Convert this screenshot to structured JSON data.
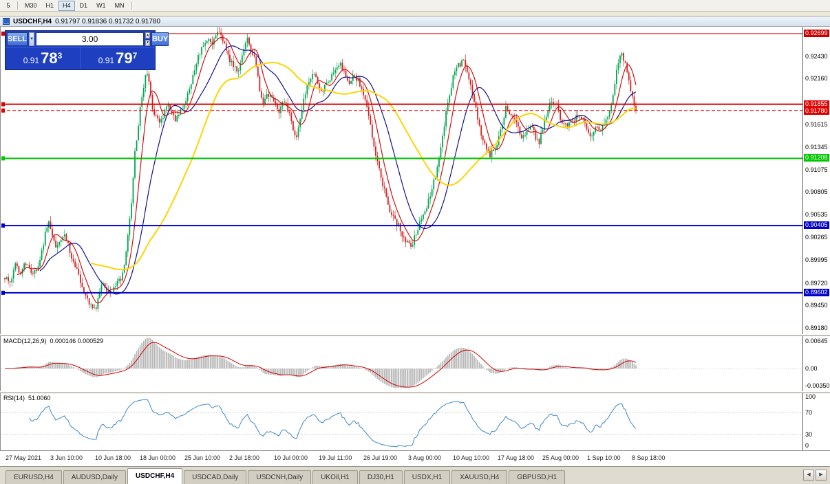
{
  "toolbar": {
    "timeframes": [
      "5",
      "M30",
      "H1",
      "H4",
      "D1",
      "W1",
      "MN"
    ],
    "active": "H4"
  },
  "titlebar": {
    "symbol": "USDCHF,H4",
    "ohlc": "0.91797 0.91836 0.91732 0.91780"
  },
  "order_panel": {
    "sell_label": "SELL",
    "buy_label": "BUY",
    "volume": "3.00",
    "sell_price": {
      "prefix": "0.91",
      "big": "78",
      "sup": "3"
    },
    "buy_price": {
      "prefix": "0.91",
      "big": "79",
      "sup": "7"
    }
  },
  "price_axis": {
    "ticks": [
      0.9243,
      0.9216,
      0.91615,
      0.91345,
      0.91075,
      0.90805,
      0.90535,
      0.90265,
      0.89995,
      0.8972,
      0.8945,
      0.8918
    ]
  },
  "indicators": {
    "macd": {
      "label": "MACD(12,26,9)",
      "values": "0.000146 0.000529",
      "axis": [
        {
          "v": 0.00645,
          "label": "0.00645"
        },
        {
          "v": 0,
          "label": "0.00"
        },
        {
          "v": -0.0035,
          "label": "-0.00350"
        }
      ]
    },
    "rsi": {
      "label": "RSI(14)",
      "value": "51.0060",
      "axis": [
        {
          "v": 100,
          "label": "100"
        },
        {
          "v": 70,
          "label": "70"
        },
        {
          "v": 30,
          "label": "30"
        },
        {
          "v": 0,
          "label": "0"
        }
      ]
    }
  },
  "time_axis": {
    "labels": [
      "27 May 2021",
      "3 Jun 10:00",
      "10 Jun 18:00",
      "18 Jun 00:00",
      "25 Jun 10:00",
      "2 Jul 18:00",
      "10 Jul 00:00",
      "19 Jul 11:00",
      "26 Jul 19:00",
      "3 Aug 00:00",
      "10 Aug 10:00",
      "17 Aug 18:00",
      "25 Aug 00:00",
      "1 Sep 10:00",
      "8 Sep 18:00"
    ]
  },
  "tabbar": {
    "tabs": [
      "EURUSD,H4",
      "AUDUSD,Daily",
      "USDCHF,H4",
      "USDCAD,Daily",
      "USDCNH,Daily",
      "UKOil,H1",
      "DJ30,H1",
      "USDX,H1",
      "XAUUSD,H4",
      "GBPUSD,H1"
    ],
    "active": "USDCHF,H4",
    "scroll_left": "◀",
    "scroll_right": "▶"
  },
  "chart_data": {
    "type": "candlestick",
    "symbol": "USDCHF",
    "timeframe": "H4",
    "price_range": {
      "max": 0.9278,
      "min": 0.891
    },
    "candle_count": 360,
    "seed": 12,
    "noise": 0.0008,
    "wick": 0.0007,
    "current_price": 0.9178,
    "up_color": "#00A550",
    "down_color": "#D42020",
    "horizontal_lines": [
      {
        "price": 0.92699,
        "color": "#CC0000",
        "width": 1
      },
      {
        "price": 0.91855,
        "color": "#E00000",
        "width": 2
      },
      {
        "price": 0.91208,
        "color": "#00C800",
        "width": 2
      },
      {
        "price": 0.90405,
        "color": "#0000C8",
        "width": 2
      },
      {
        "price": 0.89602,
        "color": "#0000C8",
        "width": 2
      }
    ],
    "moving_averages": [
      {
        "period": 8,
        "color": "#D01010"
      },
      {
        "period": 21,
        "color": "#101090"
      },
      {
        "period": 50,
        "color": "#FFD400"
      }
    ],
    "macd": {
      "fast": 12,
      "slow": 26,
      "signal": 9,
      "range": {
        "max": 0.0066,
        "min": -0.0046
      }
    },
    "rsi": {
      "period": 14,
      "levels": [
        70,
        30
      ]
    },
    "waypoints": [
      [
        0.0,
        0.8978
      ],
      [
        0.008,
        0.897
      ],
      [
        0.016,
        0.8992
      ],
      [
        0.024,
        0.8985
      ],
      [
        0.032,
        0.8996
      ],
      [
        0.04,
        0.8988
      ],
      [
        0.049,
        0.8984
      ],
      [
        0.058,
        0.901
      ],
      [
        0.066,
        0.9036
      ],
      [
        0.071,
        0.9044
      ],
      [
        0.076,
        0.9028
      ],
      [
        0.082,
        0.9012
      ],
      [
        0.087,
        0.9018
      ],
      [
        0.093,
        0.9032
      ],
      [
        0.098,
        0.9024
      ],
      [
        0.104,
        0.9006
      ],
      [
        0.11,
        0.8996
      ],
      [
        0.115,
        0.8988
      ],
      [
        0.122,
        0.8968
      ],
      [
        0.131,
        0.8952
      ],
      [
        0.138,
        0.8946
      ],
      [
        0.144,
        0.8942
      ],
      [
        0.15,
        0.896
      ],
      [
        0.156,
        0.8972
      ],
      [
        0.163,
        0.896
      ],
      [
        0.171,
        0.8964
      ],
      [
        0.178,
        0.8972
      ],
      [
        0.185,
        0.8976
      ],
      [
        0.193,
        0.901
      ],
      [
        0.2,
        0.9065
      ],
      [
        0.206,
        0.9125
      ],
      [
        0.212,
        0.9165
      ],
      [
        0.218,
        0.92
      ],
      [
        0.224,
        0.9226
      ],
      [
        0.229,
        0.9208
      ],
      [
        0.234,
        0.918
      ],
      [
        0.24,
        0.9168
      ],
      [
        0.246,
        0.916
      ],
      [
        0.252,
        0.9172
      ],
      [
        0.258,
        0.9186
      ],
      [
        0.264,
        0.918
      ],
      [
        0.27,
        0.9166
      ],
      [
        0.276,
        0.9172
      ],
      [
        0.283,
        0.9184
      ],
      [
        0.29,
        0.9198
      ],
      [
        0.298,
        0.922
      ],
      [
        0.306,
        0.924
      ],
      [
        0.314,
        0.9254
      ],
      [
        0.322,
        0.9264
      ],
      [
        0.328,
        0.9256
      ],
      [
        0.334,
        0.9268
      ],
      [
        0.34,
        0.9274
      ],
      [
        0.347,
        0.926
      ],
      [
        0.354,
        0.9244
      ],
      [
        0.362,
        0.923
      ],
      [
        0.37,
        0.9228
      ],
      [
        0.377,
        0.9248
      ],
      [
        0.384,
        0.9264
      ],
      [
        0.39,
        0.9252
      ],
      [
        0.397,
        0.9236
      ],
      [
        0.403,
        0.9206
      ],
      [
        0.409,
        0.9184
      ],
      [
        0.415,
        0.9194
      ],
      [
        0.421,
        0.9198
      ],
      [
        0.427,
        0.9188
      ],
      [
        0.433,
        0.9176
      ],
      [
        0.44,
        0.9188
      ],
      [
        0.447,
        0.9184
      ],
      [
        0.454,
        0.9166
      ],
      [
        0.461,
        0.9144
      ],
      [
        0.468,
        0.9166
      ],
      [
        0.474,
        0.919
      ],
      [
        0.481,
        0.9212
      ],
      [
        0.488,
        0.9226
      ],
      [
        0.495,
        0.921
      ],
      [
        0.502,
        0.92
      ],
      [
        0.509,
        0.9212
      ],
      [
        0.517,
        0.9218
      ],
      [
        0.524,
        0.923
      ],
      [
        0.53,
        0.9236
      ],
      [
        0.538,
        0.9222
      ],
      [
        0.545,
        0.9212
      ],
      [
        0.553,
        0.9218
      ],
      [
        0.56,
        0.9214
      ],
      [
        0.567,
        0.9198
      ],
      [
        0.573,
        0.9182
      ],
      [
        0.581,
        0.9152
      ],
      [
        0.589,
        0.9122
      ],
      [
        0.596,
        0.9098
      ],
      [
        0.603,
        0.9078
      ],
      [
        0.61,
        0.906
      ],
      [
        0.617,
        0.905
      ],
      [
        0.624,
        0.904
      ],
      [
        0.63,
        0.9028
      ],
      [
        0.637,
        0.902
      ],
      [
        0.644,
        0.9016
      ],
      [
        0.651,
        0.903
      ],
      [
        0.658,
        0.9044
      ],
      [
        0.665,
        0.9056
      ],
      [
        0.672,
        0.907
      ],
      [
        0.679,
        0.9092
      ],
      [
        0.687,
        0.9114
      ],
      [
        0.695,
        0.9152
      ],
      [
        0.703,
        0.9194
      ],
      [
        0.71,
        0.9216
      ],
      [
        0.717,
        0.923
      ],
      [
        0.723,
        0.9234
      ],
      [
        0.728,
        0.9238
      ],
      [
        0.735,
        0.9218
      ],
      [
        0.741,
        0.9198
      ],
      [
        0.747,
        0.9176
      ],
      [
        0.753,
        0.9156
      ],
      [
        0.76,
        0.9138
      ],
      [
        0.767,
        0.9124
      ],
      [
        0.774,
        0.913
      ],
      [
        0.781,
        0.9138
      ],
      [
        0.788,
        0.9162
      ],
      [
        0.794,
        0.918
      ],
      [
        0.801,
        0.9174
      ],
      [
        0.808,
        0.9166
      ],
      [
        0.814,
        0.9154
      ],
      [
        0.821,
        0.9146
      ],
      [
        0.828,
        0.9156
      ],
      [
        0.834,
        0.9164
      ],
      [
        0.84,
        0.9148
      ],
      [
        0.846,
        0.9138
      ],
      [
        0.853,
        0.916
      ],
      [
        0.86,
        0.918
      ],
      [
        0.866,
        0.9188
      ],
      [
        0.873,
        0.9188
      ],
      [
        0.879,
        0.917
      ],
      [
        0.886,
        0.9158
      ],
      [
        0.893,
        0.9162
      ],
      [
        0.9,
        0.9166
      ],
      [
        0.907,
        0.917
      ],
      [
        0.913,
        0.9172
      ],
      [
        0.92,
        0.9158
      ],
      [
        0.927,
        0.915
      ],
      [
        0.934,
        0.9154
      ],
      [
        0.941,
        0.9156
      ],
      [
        0.948,
        0.916
      ],
      [
        0.955,
        0.9166
      ],
      [
        0.961,
        0.9188
      ],
      [
        0.967,
        0.9214
      ],
      [
        0.972,
        0.9234
      ],
      [
        0.977,
        0.9248
      ],
      [
        0.982,
        0.9236
      ],
      [
        0.987,
        0.9218
      ],
      [
        0.993,
        0.9198
      ],
      [
        1.0,
        0.9178
      ]
    ]
  }
}
